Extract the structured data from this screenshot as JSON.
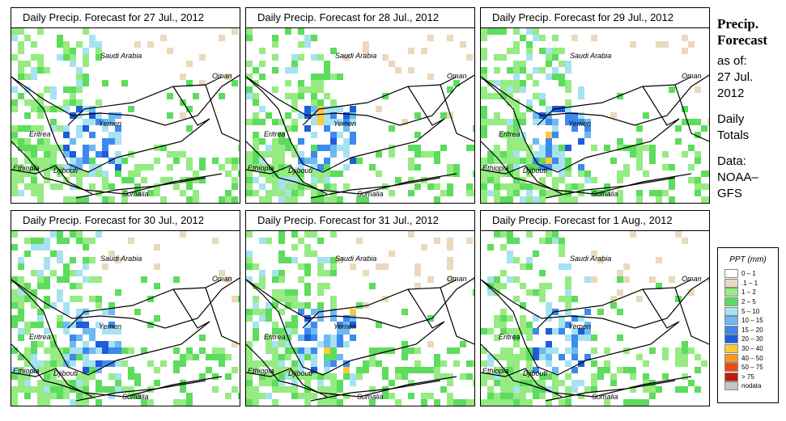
{
  "panels": [
    {
      "title": "Daily Precip. Forecast for  27 Jul., 2012",
      "rain_level": 0.9
    },
    {
      "title": "Daily Precip. Forecast for  28 Jul., 2012",
      "rain_level": 0.7
    },
    {
      "title": "Daily Precip. Forecast for  29 Jul., 2012",
      "rain_level": 0.8
    },
    {
      "title": "Daily Precip. Forecast for  30 Jul., 2012",
      "rain_level": 0.6
    },
    {
      "title": "Daily Precip. Forecast for  31 Jul., 2012",
      "rain_level": 0.75
    },
    {
      "title": "Daily Precip. Forecast for  1 Aug., 2012",
      "rain_level": 0.85
    }
  ],
  "map_labels": {
    "saudi": "Saudi Arabia",
    "oman": "Oman",
    "yemen": "Yemen",
    "eritrea": "Eritrea",
    "ethiopia": "Ethiopia",
    "djibouti": "Djibouti",
    "somalia": "Somalia"
  },
  "sidebar": {
    "title_line1": "Precip.",
    "title_line2": "Forecast",
    "asof_line1": "as of:",
    "asof_line2": "27 Jul.",
    "asof_line3": "2012",
    "daily_line1": "Daily",
    "daily_line2": "Totals",
    "data_line1": "Data:",
    "data_line2": "NOAA–",
    "data_line3": "GFS"
  },
  "legend": {
    "title": "PPT (mm)",
    "items": [
      {
        "range": "0 – 1",
        "color": "#ffffff"
      },
      {
        "range": ".1 – 1",
        "color": "#ead9bd"
      },
      {
        "range": "1 – 2",
        "color": "#96eb83"
      },
      {
        "range": "2 – 5",
        "color": "#5ddc5d"
      },
      {
        "range": "5 – 10",
        "color": "#a6e2f2"
      },
      {
        "range": "10 – 15",
        "color": "#6db9f1"
      },
      {
        "range": "15 – 20",
        "color": "#3d89ee"
      },
      {
        "range": "20 – 30",
        "color": "#1f5cd8"
      },
      {
        "range": "30 – 40",
        "color": "#f8cc3a"
      },
      {
        "range": "40 – 50",
        "color": "#f79a1e"
      },
      {
        "range": "50 – 75",
        "color": "#ee4a12"
      },
      {
        "range": "> 75",
        "color": "#c01a0e"
      },
      {
        "range": "nodata",
        "color": "#c4c4c4"
      }
    ]
  }
}
